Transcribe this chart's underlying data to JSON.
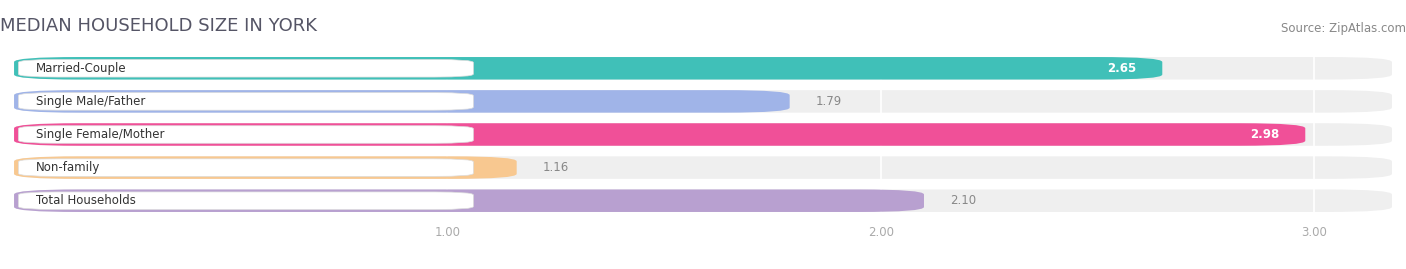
{
  "title": "MEDIAN HOUSEHOLD SIZE IN YORK",
  "source": "Source: ZipAtlas.com",
  "categories": [
    "Married-Couple",
    "Single Male/Father",
    "Single Female/Mother",
    "Non-family",
    "Total Households"
  ],
  "values": [
    2.65,
    1.79,
    2.98,
    1.16,
    2.1
  ],
  "bar_colors": [
    "#40c0b8",
    "#a0b4e8",
    "#f05098",
    "#f8c890",
    "#b8a0d0"
  ],
  "xlim": [
    0,
    3.18
  ],
  "xmin": 0,
  "xticks": [
    1.0,
    2.0,
    3.0
  ],
  "background_color": "#ffffff",
  "bar_bg_color": "#efefef",
  "title_fontsize": 13,
  "label_fontsize": 8.5,
  "value_fontsize": 8.5,
  "source_fontsize": 8.5,
  "title_color": "#555566",
  "source_color": "#888888",
  "tick_color": "#aaaaaa",
  "value_color_inside": "#ffffff",
  "value_color_outside": "#888888"
}
